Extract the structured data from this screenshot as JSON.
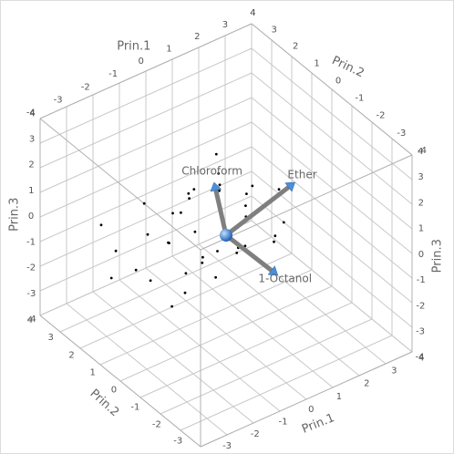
{
  "chart_data": {
    "type": "scatter3d",
    "x_label": "Prin.1",
    "y_label": "Prin.2",
    "z_label": "Prin.3",
    "xlim": [
      -4,
      4
    ],
    "ylim": [
      -4,
      4
    ],
    "zlim": [
      -4,
      4
    ],
    "xticks": [
      -4,
      -3,
      -2,
      -1,
      0,
      1,
      2,
      3,
      4
    ],
    "yticks": [
      -4,
      -3,
      -2,
      -1,
      0,
      1,
      2,
      3,
      4
    ],
    "zticks": [
      -4,
      -3,
      -2,
      -1,
      0,
      1,
      2,
      3,
      4
    ],
    "x": [
      -3.2,
      -2.8,
      -2.5,
      -2.1,
      -1.9,
      -1.6,
      -1.4,
      -1.2,
      -1.0,
      -0.8,
      -0.6,
      -0.5,
      -0.3,
      -0.2,
      0.0,
      0.1,
      0.3,
      0.4,
      0.6,
      0.8,
      1.0,
      1.2,
      1.4,
      1.6,
      1.8,
      2.0,
      -2.2,
      -1.7,
      -0.9,
      -0.4,
      0.2,
      0.7,
      1.1,
      1.5,
      -1.1,
      0.5,
      -2.6,
      -0.1,
      0.9,
      1.3
    ],
    "y": [
      1.5,
      0.8,
      2.2,
      1.0,
      -0.5,
      1.8,
      0.2,
      2.5,
      -0.8,
      1.2,
      0.4,
      2.0,
      -1.0,
      0.9,
      1.6,
      -0.4,
      0.7,
      2.4,
      -0.2,
      1.1,
      0.3,
      1.9,
      -0.6,
      0.8,
      1.4,
      0.0,
      -0.2,
      0.6,
      1.7,
      -0.3,
      2.1,
      1.3,
      0.5,
      -0.9,
      0.1,
      1.0,
      2.8,
      0.3,
      -1.2,
      2.2
    ],
    "z": [
      -1.2,
      -0.6,
      -0.9,
      -1.5,
      -0.3,
      -0.4,
      -1.8,
      0.2,
      -0.7,
      0.5,
      -1.1,
      -0.2,
      0.3,
      -1.4,
      0.8,
      -0.5,
      0.4,
      -0.1,
      0.6,
      -0.8,
      1.0,
      0.2,
      -0.3,
      0.7,
      -0.6,
      0.9,
      -1.7,
      0.1,
      -1.0,
      1.1,
      0.0,
      1.3,
      -1.3,
      0.4,
      0.6,
      0.9,
      -0.2,
      -0.8,
      0.1,
      1.2
    ],
    "point_color": "#000000",
    "rays": [
      {
        "name": "Chloroform",
        "x": 0,
        "y": 0.6,
        "z": 1.75
      },
      {
        "name": "Ether",
        "x": 2,
        "y": -0.8,
        "z": 1.72
      },
      {
        "name": "1-Octanol",
        "x": 1.2,
        "y": -1,
        "z": -1.54
      }
    ],
    "ray_color": "#7f7f7f",
    "arrow_color": "#4a8fd9",
    "grid": true
  }
}
